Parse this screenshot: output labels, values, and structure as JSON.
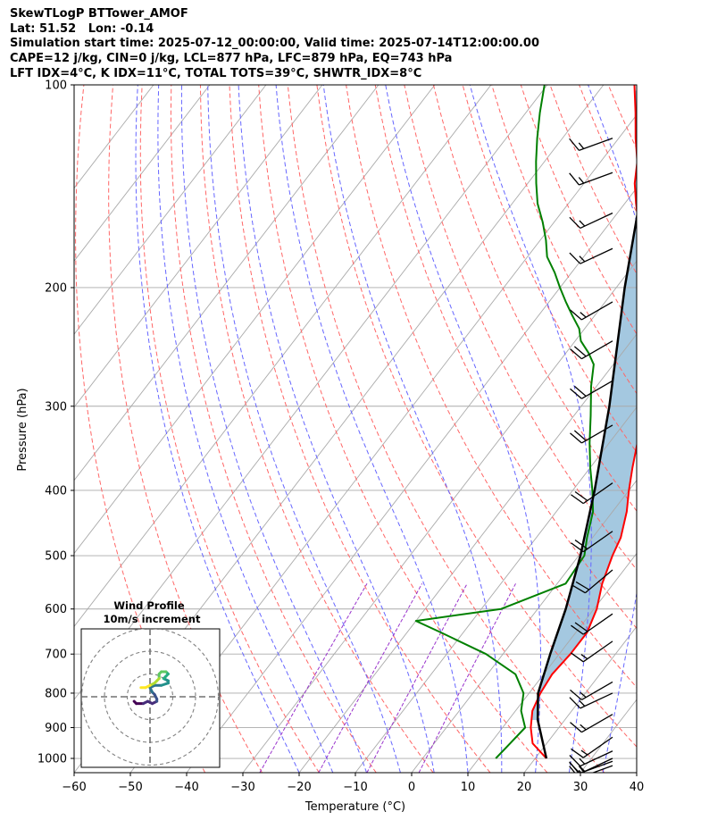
{
  "header": {
    "line1": "SkewTLogP BTTower_AMOF",
    "line2": "Lat: 51.52   Lon: -0.14",
    "line3": "Simulation start time: 2025-07-12_00:00:00, Valid time: 2025-07-14T12:00:00.00",
    "line4": "CAPE=12 j/kg, CIN=0 j/kg, LCL=877 hPa, LFC=879 hPa, EQ=743 hPa",
    "line5": "LFT IDX=4°C, K IDX=11°C, TOTAL TOTS=39°C, SHWTR_IDX=8°C"
  },
  "chart_data": {
    "type": "line",
    "subtype": "skew-T log-P",
    "xlabel": "Temperature (°C)",
    "ylabel": "Pressure (hPa)",
    "x_ticks": [
      "−60",
      "−50",
      "−40",
      "−30",
      "−20",
      "−10",
      "0",
      "10",
      "20",
      "30",
      "40"
    ],
    "x_tick_values": [
      -60,
      -50,
      -40,
      -30,
      -20,
      -10,
      0,
      10,
      20,
      30,
      40
    ],
    "y_ticks": [
      "100",
      "200",
      "300",
      "400",
      "500",
      "600",
      "700",
      "800",
      "900",
      "1000"
    ],
    "y_tick_values": [
      100,
      200,
      300,
      400,
      500,
      600,
      700,
      800,
      900,
      1000
    ],
    "xlim": [
      -60,
      40
    ],
    "ylim_hpa": [
      1050,
      100
    ],
    "log_pressure_axis": true,
    "grid": true,
    "colors": {
      "temperature": "#ff0000",
      "dewpoint": "#008000",
      "parcel": "#000000",
      "cape_fill": "#a4c8e0",
      "dry_adiabat": "#ff6666",
      "moist_adiabat": "#6666ff",
      "mixing_ratio": "#9933cc",
      "isotherm": "#aaaaaa"
    },
    "series": [
      {
        "name": "temperature",
        "points": [
          [
            22.0,
            1000
          ],
          [
            17.5,
            950
          ],
          [
            15.0,
            900
          ],
          [
            13.0,
            850
          ],
          [
            12.0,
            800
          ],
          [
            11.5,
            750
          ],
          [
            12.0,
            700
          ],
          [
            12.0,
            650
          ],
          [
            10.5,
            600
          ],
          [
            8.0,
            550
          ],
          [
            6.0,
            500
          ],
          [
            5.0,
            470
          ],
          [
            2.5,
            430
          ],
          [
            0.0,
            400
          ],
          [
            -2.5,
            370
          ],
          [
            -5.0,
            340
          ],
          [
            -7.5,
            310
          ],
          [
            -10.0,
            280
          ],
          [
            -12.5,
            260
          ],
          [
            -14.5,
            250
          ],
          [
            -16.0,
            240
          ],
          [
            -17.0,
            230
          ],
          [
            -18.5,
            220
          ],
          [
            -20.5,
            210
          ],
          [
            -22.5,
            200
          ],
          [
            -26.0,
            190
          ],
          [
            -29.5,
            180
          ],
          [
            -32.0,
            170
          ],
          [
            -35.0,
            160
          ],
          [
            -38.0,
            150
          ],
          [
            -41.0,
            140
          ],
          [
            -43.5,
            130
          ],
          [
            -47.0,
            120
          ],
          [
            -50.5,
            110
          ],
          [
            -54.5,
            100
          ]
        ]
      },
      {
        "name": "dewpoint",
        "points": [
          [
            13.0,
            1000
          ],
          [
            13.5,
            950
          ],
          [
            14.0,
            900
          ],
          [
            11.0,
            850
          ],
          [
            9.0,
            800
          ],
          [
            5.0,
            750
          ],
          [
            -3.0,
            700
          ],
          [
            -14.0,
            650
          ],
          [
            -20.0,
            625
          ],
          [
            -6.5,
            600
          ],
          [
            1.5,
            550
          ],
          [
            1.0,
            500
          ],
          [
            -1.0,
            470
          ],
          [
            -3.5,
            430
          ],
          [
            -6.5,
            400
          ],
          [
            -10.0,
            370
          ],
          [
            -13.5,
            340
          ],
          [
            -17.0,
            310
          ],
          [
            -21.0,
            280
          ],
          [
            -23.5,
            260
          ],
          [
            -26.0,
            250
          ],
          [
            -29.0,
            240
          ],
          [
            -31.0,
            230
          ],
          [
            -34.0,
            220
          ],
          [
            -37.0,
            210
          ],
          [
            -40.0,
            200
          ],
          [
            -43.0,
            190
          ],
          [
            -46.5,
            180
          ],
          [
            -49.0,
            170
          ],
          [
            -52.0,
            160
          ],
          [
            -55.5,
            150
          ],
          [
            -58.5,
            140
          ],
          [
            -61.5,
            130
          ],
          [
            -64.5,
            120
          ],
          [
            -67.5,
            110
          ],
          [
            -70.5,
            100
          ]
        ]
      },
      {
        "name": "parcel",
        "points": [
          [
            22.0,
            1000
          ],
          [
            15.2,
            877
          ],
          [
            11.6,
            800
          ],
          [
            8.4,
            700
          ],
          [
            5.0,
            600
          ],
          [
            0.3,
            500
          ],
          [
            -6.1,
            400
          ],
          [
            -15.0,
            300
          ],
          [
            -28.5,
            200
          ],
          [
            -50.0,
            100
          ]
        ]
      }
    ],
    "inset": {
      "title": "Wind Profile",
      "subtitle": "10m/s increment",
      "rings_ms": [
        10,
        20,
        30
      ],
      "hodograph_points_ms": [
        [
          -7,
          -2
        ],
        [
          -6,
          -3
        ],
        [
          -3,
          -3
        ],
        [
          -1,
          -2
        ],
        [
          1,
          -3
        ],
        [
          3,
          -2
        ],
        [
          3,
          -1
        ],
        [
          2,
          1
        ],
        [
          1,
          2
        ],
        [
          0,
          4
        ],
        [
          2,
          5
        ],
        [
          5,
          5
        ],
        [
          8,
          6
        ],
        [
          8,
          7
        ],
        [
          6,
          8
        ],
        [
          7,
          9
        ],
        [
          8,
          10
        ],
        [
          7,
          11
        ],
        [
          5,
          11
        ],
        [
          4,
          10
        ],
        [
          4,
          8
        ],
        [
          3,
          7
        ],
        [
          2,
          6
        ],
        [
          0,
          5
        ],
        [
          -2,
          4
        ],
        [
          -4,
          4
        ]
      ]
    },
    "wind_barbs": [
      {
        "p": 1025,
        "dir": 250,
        "kt": 15
      },
      {
        "p": 1010,
        "dir": 250,
        "kt": 15
      },
      {
        "p": 1000,
        "dir": 245,
        "kt": 15
      },
      {
        "p": 975,
        "dir": 245,
        "kt": 15
      },
      {
        "p": 930,
        "dir": 235,
        "kt": 15
      },
      {
        "p": 860,
        "dir": 240,
        "kt": 15
      },
      {
        "p": 800,
        "dir": 245,
        "kt": 15
      },
      {
        "p": 770,
        "dir": 240,
        "kt": 15
      },
      {
        "p": 670,
        "dir": 235,
        "kt": 15
      },
      {
        "p": 610,
        "dir": 235,
        "kt": 20
      },
      {
        "p": 525,
        "dir": 230,
        "kt": 20
      },
      {
        "p": 460,
        "dir": 235,
        "kt": 20
      },
      {
        "p": 390,
        "dir": 235,
        "kt": 20
      },
      {
        "p": 320,
        "dir": 240,
        "kt": 20
      },
      {
        "p": 275,
        "dir": 240,
        "kt": 20
      },
      {
        "p": 240,
        "dir": 240,
        "kt": 20
      },
      {
        "p": 210,
        "dir": 240,
        "kt": 15
      },
      {
        "p": 175,
        "dir": 245,
        "kt": 15
      },
      {
        "p": 155,
        "dir": 245,
        "kt": 15
      },
      {
        "p": 135,
        "dir": 250,
        "kt": 15
      },
      {
        "p": 120,
        "dir": 250,
        "kt": 15
      }
    ]
  }
}
